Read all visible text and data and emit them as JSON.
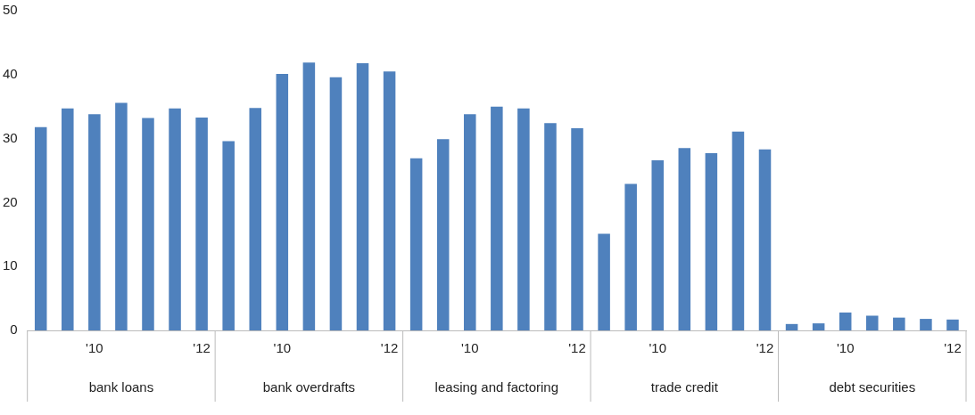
{
  "chart_data": {
    "type": "bar",
    "categories": [
      null,
      null,
      "'10",
      null,
      null,
      null,
      "'12",
      null,
      null,
      "'10",
      null,
      null,
      null,
      "'12",
      null,
      null,
      "'10",
      null,
      null,
      null,
      "'12",
      null,
      null,
      "'10",
      null,
      null,
      null,
      "'12",
      null,
      null,
      "'10",
      null,
      null,
      null,
      "'12"
    ],
    "values": [
      31.8,
      34.7,
      33.8,
      35.6,
      33.2,
      34.7,
      33.3,
      29.6,
      34.8,
      40.1,
      41.9,
      39.6,
      41.8,
      40.5,
      26.9,
      29.9,
      33.8,
      35.0,
      34.7,
      32.4,
      31.6,
      15.1,
      22.9,
      26.6,
      28.5,
      27.7,
      31.1,
      28.3,
      1.0,
      1.1,
      2.8,
      2.3,
      2.0,
      1.8,
      1.7
    ],
    "color": "#4f81bd",
    "annotations": [
      "bank loans",
      "bank overdrafts",
      "leasing and factoring",
      "trade credit",
      "debt securities"
    ],
    "ylim": [
      0,
      50
    ],
    "yticks": [
      0,
      10,
      20,
      30,
      40,
      50
    ],
    "grid": false,
    "legend": false
  }
}
